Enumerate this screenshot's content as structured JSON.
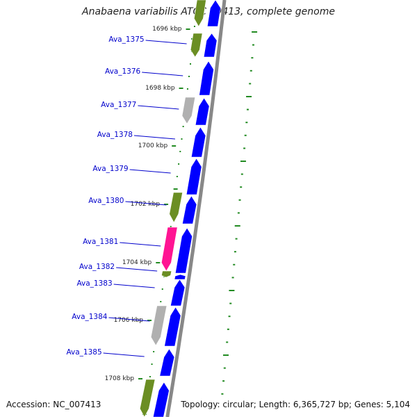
{
  "title": "Anabaena variabilis ATCC 29413, complete genome",
  "accession": "Accession: NC_007413",
  "summary": "Topology: circular; Length: 6,365,727 bp; Genes: 5,104",
  "colors": {
    "cds": "#0000ff",
    "olive": "#6b8e23",
    "gray": "#b0b0b0",
    "pink": "#ff1493",
    "label": "#0000cc",
    "tick": "#228b22",
    "backbone": "#888888"
  },
  "kbp_labels": [
    {
      "text": "1696 kbp"
    },
    {
      "text": "1698 kbp"
    },
    {
      "text": "1700 kbp"
    },
    {
      "text": "1702 kbp"
    },
    {
      "text": "1704 kbp"
    },
    {
      "text": "1706 kbp"
    },
    {
      "text": "1708 kbp"
    }
  ],
  "genes": [
    {
      "label": "Ava_1375"
    },
    {
      "label": "Ava_1376"
    },
    {
      "label": "Ava_1377"
    },
    {
      "label": "Ava_1378"
    },
    {
      "label": "Ava_1379"
    },
    {
      "label": "Ava_1380"
    },
    {
      "label": "Ava_1381"
    },
    {
      "label": "Ava_1382"
    },
    {
      "label": "Ava_1383"
    },
    {
      "label": "Ava_1384"
    },
    {
      "label": "Ava_1385"
    }
  ]
}
